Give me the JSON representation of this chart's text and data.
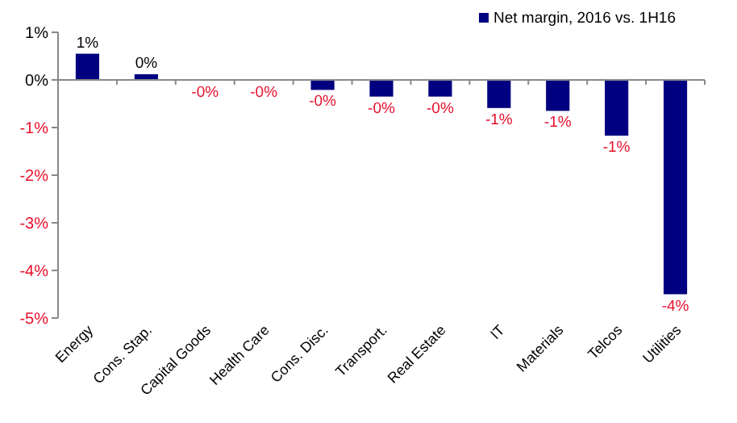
{
  "chart_data": {
    "type": "bar",
    "categories": [
      "Energy",
      "Cons. Stap.",
      "Capital Goods",
      "Health Care",
      "Cons. Disc.",
      "Transport.",
      "Real Estate",
      "IT",
      "Materials",
      "Telcos",
      "Utilities"
    ],
    "series": [
      {
        "name": "Net margin, 2016 vs. 1H16",
        "color": "#000080",
        "values": [
          0.55,
          0.12,
          -0.01,
          -0.01,
          -0.21,
          -0.35,
          -0.35,
          -0.59,
          -0.65,
          -1.17,
          -4.5
        ],
        "value_labels": [
          "1%",
          "0%",
          "-0%",
          "-0%",
          "-0%",
          "-0%",
          "-0%",
          "-1%",
          "-1%",
          "-1%",
          "-4%"
        ]
      }
    ],
    "ylim": [
      -5,
      1
    ],
    "yticks": [
      {
        "value": -5,
        "label": "-5%"
      },
      {
        "value": -4,
        "label": "-4%"
      },
      {
        "value": -3,
        "label": "-3%"
      },
      {
        "value": -2,
        "label": "-2%"
      },
      {
        "value": -1,
        "label": "-1%"
      },
      {
        "value": 0,
        "label": "0%"
      },
      {
        "value": 1,
        "label": "1%"
      }
    ],
    "legend": "top right"
  }
}
